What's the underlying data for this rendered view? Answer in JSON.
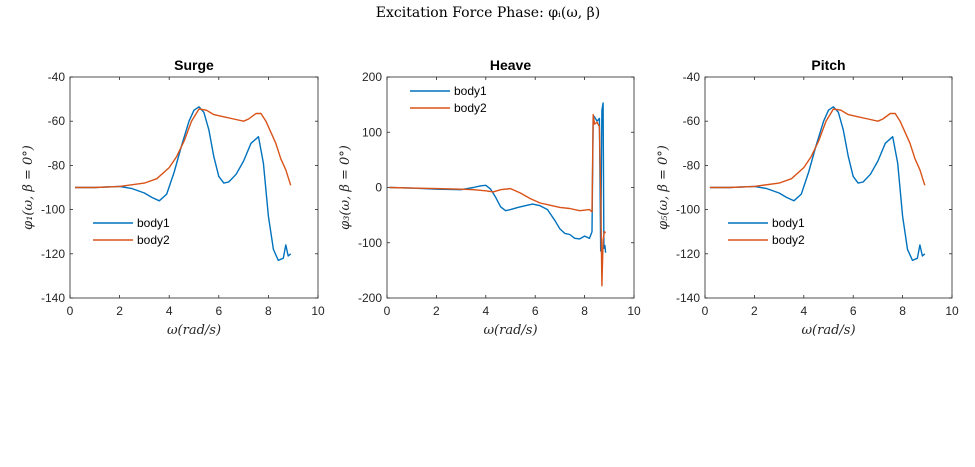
{
  "figure": {
    "title": "Excitation Force Phase: φᵢ(ω, β)"
  },
  "colors": {
    "body1": "#0072BD",
    "body2": "#D95319"
  },
  "chart_data": [
    {
      "type": "line",
      "title": "Surge",
      "xlabel": "ω(rad/s)",
      "ylabel": "φ₁(ω, β = 0°)",
      "xlim": [
        0,
        10
      ],
      "ylim": [
        -140,
        -40
      ],
      "xticks": [
        0,
        2,
        4,
        6,
        8,
        10
      ],
      "yticks": [
        -140,
        -120,
        -100,
        -80,
        -60,
        -40
      ],
      "legend": "lower-left",
      "series": [
        {
          "name": "body1",
          "x": [
            0.2,
            1,
            2,
            2.5,
            3,
            3.3,
            3.6,
            3.9,
            4.2,
            4.5,
            4.8,
            5.0,
            5.2,
            5.4,
            5.6,
            5.8,
            6.0,
            6.2,
            6.4,
            6.7,
            7.0,
            7.3,
            7.6,
            7.8,
            8.0,
            8.2,
            8.4,
            8.6,
            8.7,
            8.8,
            8.9
          ],
          "y": [
            -90,
            -90,
            -89.5,
            -90.5,
            -92.5,
            -94.5,
            -96,
            -93,
            -83,
            -71,
            -60,
            -55,
            -53.5,
            -56,
            -64,
            -76,
            -85,
            -88,
            -87.5,
            -84,
            -78,
            -70,
            -67,
            -79,
            -103,
            -118,
            -123,
            -122,
            -116,
            -121,
            -120
          ]
        },
        {
          "name": "body2",
          "x": [
            0.2,
            1,
            2,
            3,
            3.5,
            4,
            4.3,
            4.6,
            4.9,
            5.2,
            5.5,
            5.8,
            6.2,
            6.6,
            7.0,
            7.2,
            7.5,
            7.7,
            7.9,
            8.1,
            8.3,
            8.5,
            8.7,
            8.9
          ],
          "y": [
            -90,
            -90,
            -89.5,
            -88,
            -86,
            -81,
            -76,
            -69,
            -60,
            -54.5,
            -55,
            -57,
            -58,
            -59,
            -60,
            -59,
            -56.5,
            -56.5,
            -60,
            -65,
            -70,
            -77,
            -82,
            -89
          ]
        }
      ]
    },
    {
      "type": "line",
      "title": "Heave",
      "xlabel": "ω(rad/s)",
      "ylabel": "φ₃(ω, β = 0°)",
      "xlim": [
        0,
        10
      ],
      "ylim": [
        -200,
        200
      ],
      "xticks": [
        0,
        2,
        4,
        6,
        8,
        10
      ],
      "yticks": [
        -200,
        -100,
        0,
        100,
        200
      ],
      "legend": "top-left",
      "series": [
        {
          "name": "body1",
          "x": [
            0.1,
            1,
            2,
            3,
            3.5,
            3.8,
            4.0,
            4.2,
            4.4,
            4.6,
            4.8,
            5.0,
            5.3,
            5.6,
            5.9,
            6.2,
            6.5,
            6.8,
            7.0,
            7.2,
            7.4,
            7.6,
            7.8,
            8.0,
            8.2,
            8.3,
            8.35,
            8.4,
            8.5,
            8.6,
            8.65,
            8.7,
            8.75,
            8.78,
            8.82,
            8.85
          ],
          "y": [
            0,
            -1,
            -3,
            -4,
            0,
            3,
            4,
            -3,
            -18,
            -35,
            -42,
            -40,
            -36,
            -33,
            -30,
            -33,
            -40,
            -60,
            -75,
            -83,
            -85,
            -92,
            -93,
            -88,
            -92,
            -80,
            130,
            128,
            120,
            125,
            -115,
            140,
            153,
            -110,
            -105,
            -118
          ]
        },
        {
          "name": "body2",
          "x": [
            0.1,
            1,
            2,
            3,
            3.5,
            4.0,
            4.3,
            4.6,
            5.0,
            5.4,
            5.8,
            6.2,
            6.6,
            7.0,
            7.4,
            7.8,
            8.2,
            8.3,
            8.35,
            8.4,
            8.5,
            8.6,
            8.65,
            8.7,
            8.75,
            8.8,
            8.85
          ],
          "y": [
            0,
            -1,
            -2,
            -3,
            -4,
            -6,
            -8,
            -4,
            -2,
            -10,
            -20,
            -28,
            -32,
            -36,
            -38,
            -42,
            -40,
            -44,
            132,
            115,
            118,
            110,
            -10,
            -178,
            -95,
            -80,
            -82
          ]
        }
      ]
    },
    {
      "type": "line",
      "title": "Pitch",
      "xlabel": "ω(rad/s)",
      "ylabel": "φ₅(ω, β = 0°)",
      "xlim": [
        0,
        10
      ],
      "ylim": [
        -140,
        -40
      ],
      "xticks": [
        0,
        2,
        4,
        6,
        8,
        10
      ],
      "yticks": [
        -140,
        -120,
        -100,
        -80,
        -60,
        -40
      ],
      "legend": "lower-left",
      "series": [
        {
          "name": "body1",
          "x": [
            0.2,
            1,
            2,
            2.5,
            3,
            3.3,
            3.6,
            3.9,
            4.2,
            4.5,
            4.8,
            5.0,
            5.2,
            5.4,
            5.6,
            5.8,
            6.0,
            6.2,
            6.4,
            6.7,
            7.0,
            7.3,
            7.6,
            7.8,
            8.0,
            8.2,
            8.4,
            8.6,
            8.7,
            8.8,
            8.9
          ],
          "y": [
            -90,
            -90,
            -89.5,
            -90.5,
            -92.5,
            -94.5,
            -96,
            -93,
            -83,
            -71,
            -60,
            -55,
            -53.5,
            -56,
            -64,
            -76,
            -85,
            -88,
            -87.5,
            -84,
            -78,
            -70,
            -67,
            -79,
            -103,
            -118,
            -123,
            -122,
            -116,
            -121,
            -120
          ]
        },
        {
          "name": "body2",
          "x": [
            0.2,
            1,
            2,
            3,
            3.5,
            4,
            4.3,
            4.6,
            4.9,
            5.2,
            5.5,
            5.8,
            6.2,
            6.6,
            7.0,
            7.2,
            7.5,
            7.7,
            7.9,
            8.1,
            8.3,
            8.5,
            8.7,
            8.9
          ],
          "y": [
            -90,
            -90,
            -89.5,
            -88,
            -86,
            -81,
            -76,
            -69,
            -60,
            -54.5,
            -55,
            -57,
            -58,
            -59,
            -60,
            -59,
            -56.5,
            -56.5,
            -60,
            -65,
            -70,
            -77,
            -82,
            -89
          ]
        }
      ]
    }
  ]
}
